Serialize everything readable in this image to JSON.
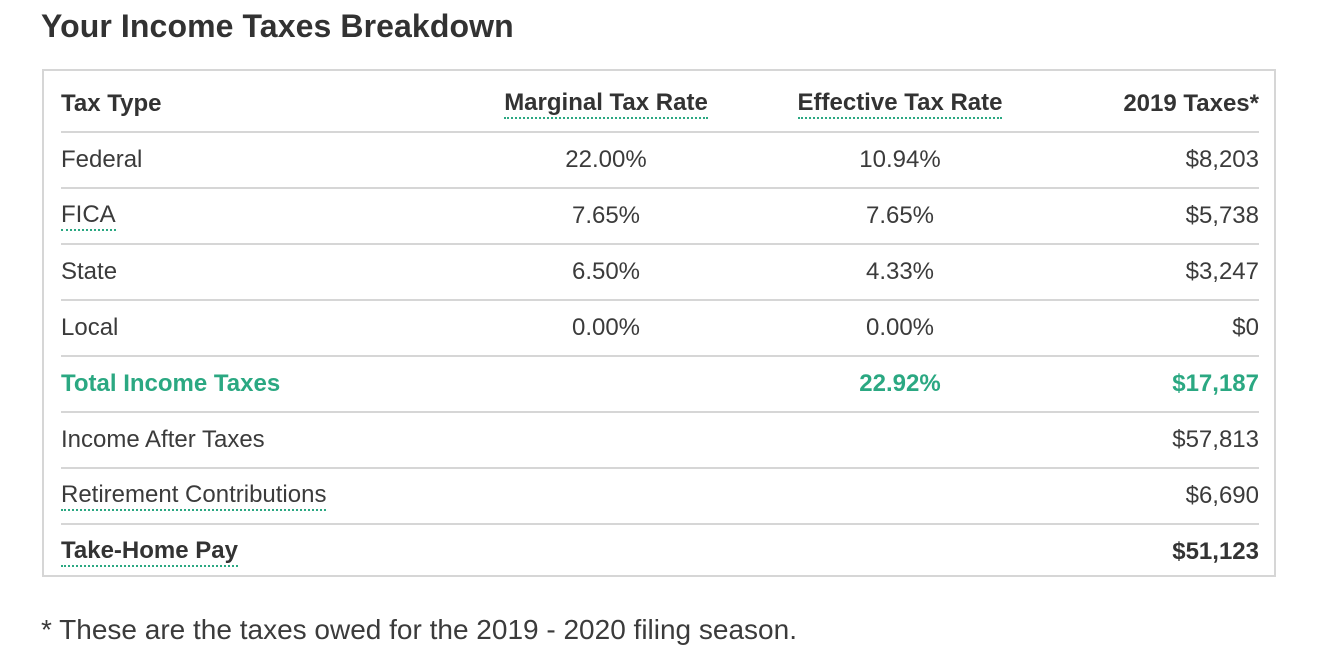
{
  "title": "Your Income Taxes Breakdown",
  "header": {
    "tax_type": "Tax Type",
    "marginal": "Marginal Tax Rate",
    "effective": "Effective Tax Rate",
    "taxes": "2019 Taxes*"
  },
  "rows": [
    {
      "label": "Federal",
      "marginal": "22.00%",
      "effective": "10.94%",
      "taxes": "$8,203"
    },
    {
      "label": "FICA",
      "marginal": "7.65%",
      "effective": "7.65%",
      "taxes": "$5,738"
    },
    {
      "label": "State",
      "marginal": "6.50%",
      "effective": "4.33%",
      "taxes": "$3,247"
    },
    {
      "label": "Local",
      "marginal": "0.00%",
      "effective": "0.00%",
      "taxes": "$0"
    }
  ],
  "total": {
    "label": "Total Income Taxes",
    "effective": "22.92%",
    "taxes": "$17,187"
  },
  "after_taxes": {
    "label": "Income After Taxes",
    "taxes": "$57,813"
  },
  "retirement": {
    "label": "Retirement Contributions",
    "taxes": "$6,690"
  },
  "take_home": {
    "label": "Take-Home Pay",
    "taxes": "$51,123"
  },
  "footnote": "* These are the taxes owed for the 2019 - 2020 filing season.",
  "colors": {
    "accent": "#2ba882",
    "border": "#d6d6d6",
    "text": "#3b3b3b"
  }
}
